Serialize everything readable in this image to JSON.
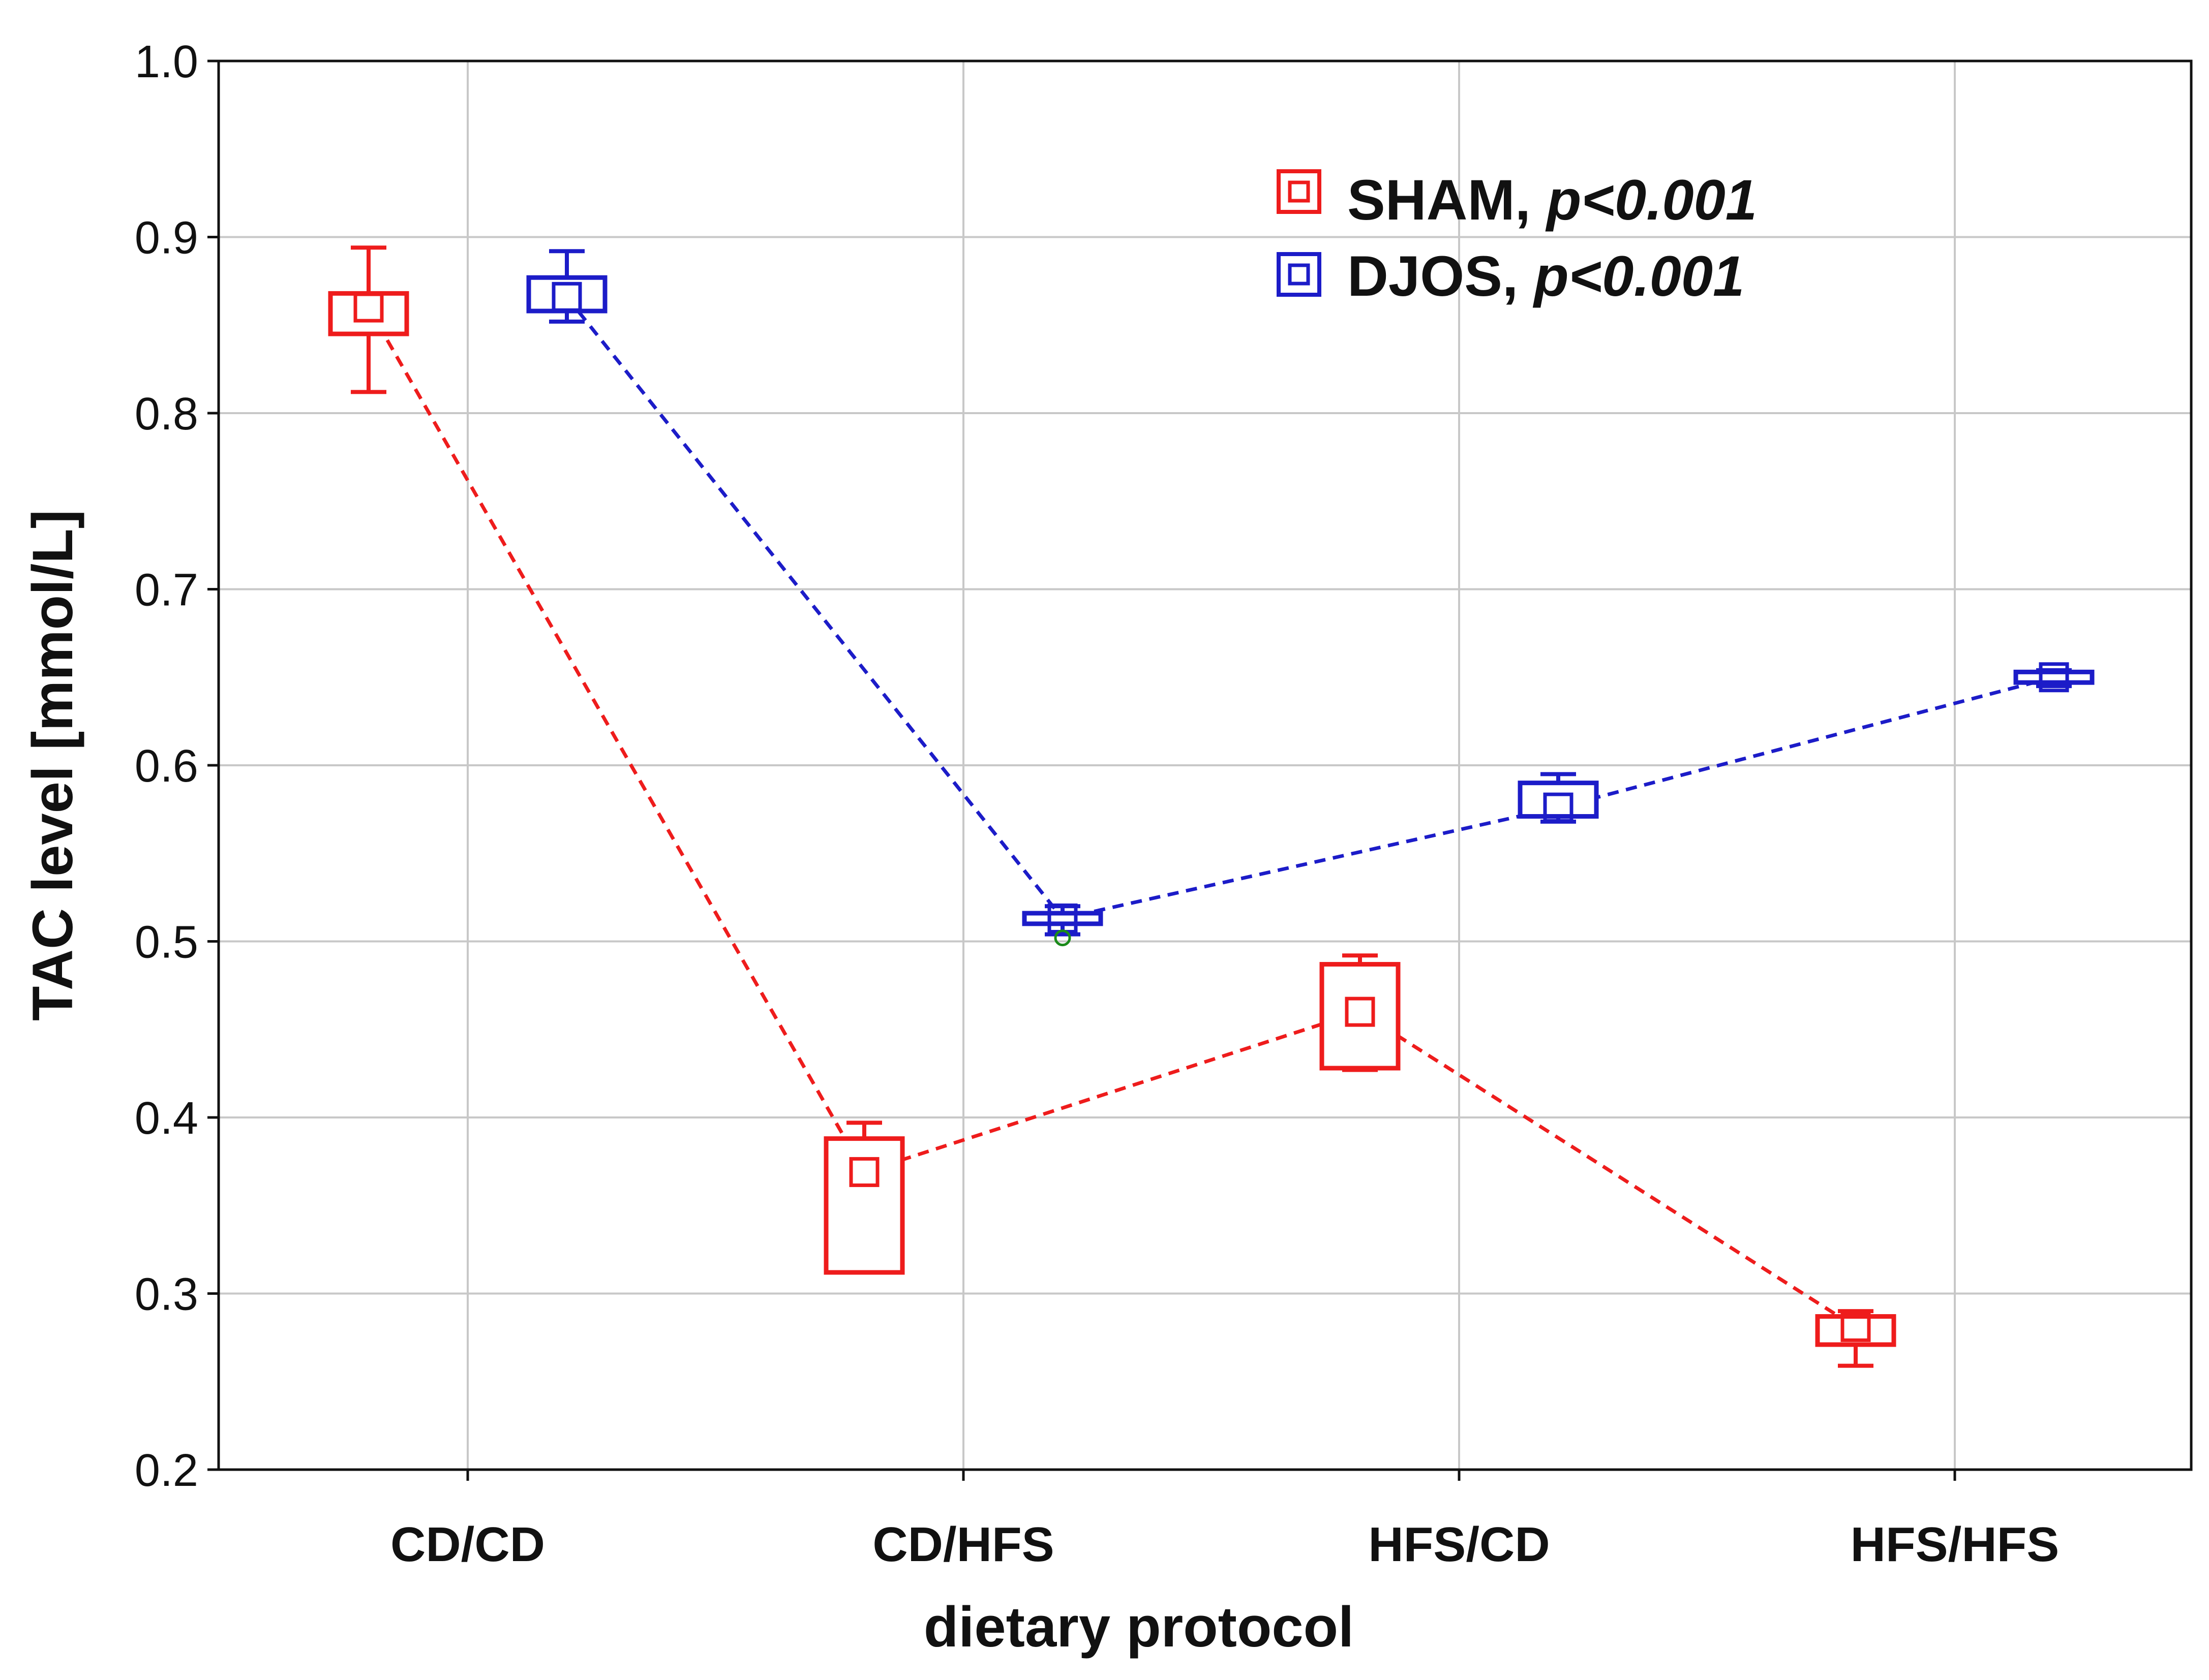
{
  "chart_data": {
    "type": "box",
    "title": "",
    "xlabel": "dietary protocol",
    "ylabel": "TAC level [mmol/L]",
    "ylim": [
      0.2,
      1.0
    ],
    "yticks": [
      "0.2",
      "0.3",
      "0.4",
      "0.5",
      "0.6",
      "0.7",
      "0.8",
      "0.9",
      "1.0"
    ],
    "categories": [
      "CD/CD",
      "CD/HFS",
      "HFS/CD",
      "HFS/HFS"
    ],
    "legend_position": "top-right",
    "series": [
      {
        "name": "SHAM",
        "p_label": "p<0.001",
        "color": "#ee1c1c",
        "boxes": [
          {
            "category": "CD/CD",
            "median": 0.86,
            "q1": 0.845,
            "q3": 0.868,
            "min": 0.812,
            "max": 0.894
          },
          {
            "category": "CD/HFS",
            "median": 0.369,
            "q1": 0.312,
            "q3": 0.388,
            "min": 0.312,
            "max": 0.397
          },
          {
            "category": "HFS/CD",
            "median": 0.46,
            "q1": 0.428,
            "q3": 0.487,
            "min": 0.427,
            "max": 0.492
          },
          {
            "category": "HFS/HFS",
            "median": 0.281,
            "q1": 0.271,
            "q3": 0.287,
            "min": 0.259,
            "max": 0.29
          }
        ]
      },
      {
        "name": "DJOS",
        "p_label": "p<0.001",
        "color": "#1c1cc8",
        "boxes": [
          {
            "category": "CD/CD",
            "median": 0.866,
            "q1": 0.858,
            "q3": 0.877,
            "min": 0.852,
            "max": 0.892
          },
          {
            "category": "CD/HFS",
            "median": 0.513,
            "q1": 0.51,
            "q3": 0.516,
            "min": 0.504,
            "max": 0.52,
            "outlier": 0.502
          },
          {
            "category": "HFS/CD",
            "median": 0.576,
            "q1": 0.571,
            "q3": 0.59,
            "min": 0.568,
            "max": 0.595
          },
          {
            "category": "HFS/HFS",
            "median": 0.65,
            "q1": 0.647,
            "q3": 0.653,
            "min": 0.645,
            "max": 0.654
          }
        ]
      }
    ]
  }
}
